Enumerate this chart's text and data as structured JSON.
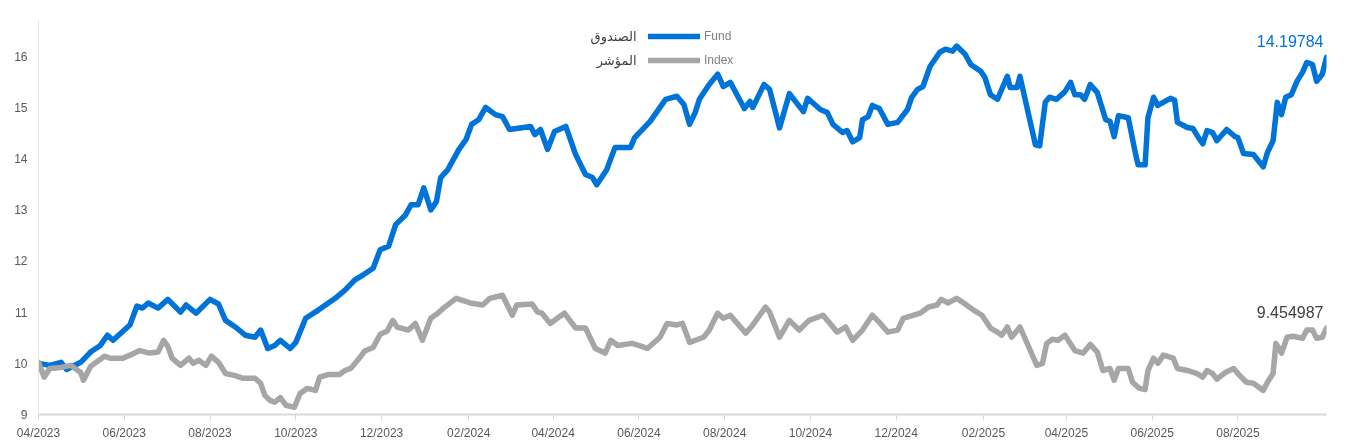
{
  "chart_data": {
    "type": "line",
    "xlim": [
      "2023-04-01",
      "2025-10-03"
    ],
    "xticks": [
      {
        "value": "2023-04-01",
        "label": "04/2023"
      },
      {
        "value": "2023-06-01",
        "label": "06/2023"
      },
      {
        "value": "2023-08-01",
        "label": "08/2023"
      },
      {
        "value": "2023-10-01",
        "label": "10/2023"
      },
      {
        "value": "2023-12-01",
        "label": "12/2023"
      },
      {
        "value": "2024-02-01",
        "label": "02/2024"
      },
      {
        "value": "2024-04-01",
        "label": "04/2024"
      },
      {
        "value": "2024-06-01",
        "label": "06/2024"
      },
      {
        "value": "2024-08-01",
        "label": "08/2024"
      },
      {
        "value": "2024-10-01",
        "label": "10/2024"
      },
      {
        "value": "2024-12-01",
        "label": "12/2024"
      },
      {
        "value": "2025-02-01",
        "label": "02/2025"
      },
      {
        "value": "2025-04-01",
        "label": "04/2025"
      },
      {
        "value": "2025-06-01",
        "label": "06/2025"
      },
      {
        "value": "2025-08-01",
        "label": "08/2025"
      }
    ],
    "ylim": [
      9,
      16.7
    ],
    "yticks": [
      9,
      10,
      11,
      12,
      13,
      14,
      15,
      16
    ],
    "grid": false,
    "legend": "top",
    "marker": "none",
    "line_style": "solid",
    "annotations": [
      "14.19784",
      "9.454987",
      "الصندوق",
      "المؤشر"
    ],
    "series": [
      {
        "name": "Fund",
        "color": "#0073d9",
        "x": [
          "2023-04-01",
          "2023-04-09",
          "2023-04-17",
          "2023-04-21",
          "2023-05-01",
          "2023-05-08",
          "2023-05-15",
          "2023-05-20",
          "2023-05-24",
          "2023-06-05",
          "2023-06-10",
          "2023-06-14",
          "2023-06-18",
          "2023-06-25",
          "2023-07-02",
          "2023-07-11",
          "2023-07-15",
          "2023-07-22",
          "2023-08-01",
          "2023-08-07",
          "2023-08-12",
          "2023-08-19",
          "2023-08-26",
          "2023-09-02",
          "2023-09-06",
          "2023-09-11",
          "2023-09-16",
          "2023-09-20",
          "2023-09-27",
          "2023-10-01",
          "2023-10-08",
          "2023-10-17",
          "2023-10-29",
          "2023-11-05",
          "2023-11-12",
          "2023-11-18",
          "2023-11-25",
          "2023-11-30",
          "2023-12-06",
          "2023-12-11",
          "2023-12-18",
          "2023-12-22",
          "2023-12-27",
          "2023-12-31",
          "2024-01-05",
          "2024-01-09",
          "2024-01-12",
          "2024-01-17",
          "2024-01-25",
          "2024-01-30",
          "2024-02-03",
          "2024-02-08",
          "2024-02-13",
          "2024-02-20",
          "2024-02-25",
          "2024-03-01",
          "2024-03-16",
          "2024-03-19",
          "2024-03-23",
          "2024-03-28",
          "2024-04-02",
          "2024-04-10",
          "2024-04-17",
          "2024-04-24",
          "2024-04-29",
          "2024-05-02",
          "2024-05-09",
          "2024-05-15",
          "2024-05-26",
          "2024-05-29",
          "2024-06-09",
          "2024-06-20",
          "2024-06-28",
          "2024-07-03",
          "2024-07-07",
          "2024-07-11",
          "2024-07-14",
          "2024-07-21",
          "2024-07-27",
          "2024-07-31",
          "2024-08-05",
          "2024-08-15",
          "2024-08-19",
          "2024-08-21",
          "2024-08-29",
          "2024-09-02",
          "2024-09-09",
          "2024-09-16",
          "2024-09-26",
          "2024-09-29",
          "2024-10-08",
          "2024-10-13",
          "2024-10-17",
          "2024-10-24",
          "2024-10-27",
          "2024-10-31",
          "2024-11-05",
          "2024-11-07",
          "2024-11-11",
          "2024-11-14",
          "2024-11-19",
          "2024-11-25",
          "2024-12-02",
          "2024-12-09",
          "2024-12-12",
          "2024-12-16",
          "2024-12-20",
          "2024-12-25",
          "2025-01-01",
          "2025-01-05",
          "2025-01-10",
          "2025-01-13",
          "2025-01-19",
          "2025-01-23",
          "2025-01-30",
          "2025-02-02",
          "2025-02-06",
          "2025-02-11",
          "2025-02-18",
          "2025-02-20",
          "2025-02-25",
          "2025-02-27",
          "2025-03-10",
          "2025-03-13",
          "2025-03-17",
          "2025-03-20",
          "2025-03-25",
          "2025-03-31",
          "2025-04-04",
          "2025-04-07",
          "2025-04-11",
          "2025-04-14",
          "2025-04-18",
          "2025-04-23",
          "2025-04-29",
          "2025-05-02",
          "2025-05-05",
          "2025-05-08",
          "2025-05-15",
          "2025-05-20",
          "2025-05-22",
          "2025-05-27",
          "2025-05-29",
          "2025-06-02",
          "2025-06-05",
          "2025-06-14",
          "2025-06-17",
          "2025-06-19",
          "2025-06-26",
          "2025-06-30",
          "2025-07-04",
          "2025-07-07",
          "2025-07-10",
          "2025-07-14",
          "2025-07-17",
          "2025-07-24",
          "2025-07-30",
          "2025-08-01",
          "2025-08-05",
          "2025-08-12",
          "2025-08-19",
          "2025-08-22",
          "2025-08-26",
          "2025-08-29",
          "2025-09-01",
          "2025-09-04",
          "2025-09-08",
          "2025-09-12",
          "2025-09-16",
          "2025-09-19",
          "2025-09-23",
          "2025-09-26",
          "2025-09-30",
          "2025-10-03"
        ],
        "values": [
          10.0,
          9.96,
          10.02,
          9.88,
          10.02,
          10.22,
          10.35,
          10.55,
          10.45,
          10.75,
          11.12,
          11.08,
          11.18,
          11.08,
          11.25,
          11.0,
          11.14,
          10.98,
          11.25,
          11.16,
          10.84,
          10.71,
          10.55,
          10.51,
          10.65,
          10.29,
          10.35,
          10.45,
          10.29,
          10.41,
          10.88,
          11.04,
          11.27,
          11.43,
          11.63,
          11.73,
          11.86,
          12.22,
          12.29,
          12.71,
          12.9,
          13.1,
          13.1,
          13.43,
          13.0,
          13.16,
          13.63,
          13.78,
          14.18,
          14.37,
          14.67,
          14.76,
          15.0,
          14.86,
          14.82,
          14.57,
          14.63,
          14.47,
          14.57,
          14.18,
          14.53,
          14.63,
          14.08,
          13.69,
          13.63,
          13.49,
          13.78,
          14.22,
          14.22,
          14.41,
          14.73,
          15.16,
          15.22,
          15.06,
          14.67,
          14.9,
          15.16,
          15.45,
          15.65,
          15.41,
          15.49,
          14.98,
          15.12,
          15.0,
          15.45,
          15.35,
          14.6,
          15.27,
          14.92,
          15.18,
          14.96,
          14.9,
          14.67,
          14.51,
          14.55,
          14.33,
          14.41,
          14.76,
          14.82,
          15.04,
          14.98,
          14.67,
          14.71,
          14.96,
          15.2,
          15.35,
          15.41,
          15.8,
          16.08,
          16.14,
          16.1,
          16.2,
          16.04,
          15.84,
          15.71,
          15.59,
          15.25,
          15.16,
          15.61,
          15.39,
          15.39,
          15.61,
          14.27,
          14.25,
          15.1,
          15.2,
          15.16,
          15.31,
          15.49,
          15.25,
          15.25,
          15.16,
          15.45,
          15.29,
          14.76,
          14.73,
          14.43,
          14.84,
          14.8,
          14.12,
          13.88,
          13.88,
          14.8,
          15.2,
          15.04,
          15.18,
          15.14,
          14.71,
          14.61,
          14.59,
          14.41,
          14.29,
          14.55,
          14.51,
          14.35,
          14.57,
          14.43,
          14.41,
          14.1,
          14.08,
          13.84,
          14.12,
          14.35,
          15.1,
          14.86,
          15.2,
          15.25,
          15.51,
          15.69,
          15.88,
          15.84,
          15.51,
          15.65,
          15.98
        ]
      },
      {
        "name": "Index",
        "color": "#a6a6a6",
        "x": [
          "2023-04-01",
          "2023-04-05",
          "2023-04-09",
          "2023-04-17",
          "2023-04-24",
          "2023-05-01",
          "2023-05-03",
          "2023-05-08",
          "2023-05-14",
          "2023-05-18",
          "2023-05-22",
          "2023-05-31",
          "2023-06-05",
          "2023-06-12",
          "2023-06-19",
          "2023-06-25",
          "2023-06-29",
          "2023-07-02",
          "2023-07-05",
          "2023-07-11",
          "2023-07-17",
          "2023-07-20",
          "2023-07-24",
          "2023-07-29",
          "2023-08-02",
          "2023-08-07",
          "2023-08-12",
          "2023-08-19",
          "2023-08-24",
          "2023-09-02",
          "2023-09-06",
          "2023-09-09",
          "2023-09-13",
          "2023-09-16",
          "2023-09-20",
          "2023-09-24",
          "2023-09-30",
          "2023-10-04",
          "2023-10-09",
          "2023-10-15",
          "2023-10-18",
          "2023-10-24",
          "2023-11-01",
          "2023-11-05",
          "2023-11-09",
          "2023-11-14",
          "2023-11-19",
          "2023-11-25",
          "2023-11-30",
          "2023-12-05",
          "2023-12-09",
          "2023-12-12",
          "2023-12-20",
          "2023-12-25",
          "2023-12-30",
          "2024-01-05",
          "2024-01-10",
          "2024-01-14",
          "2024-01-23",
          "2024-02-02",
          "2024-02-11",
          "2024-02-16",
          "2024-02-25",
          "2024-03-03",
          "2024-03-06",
          "2024-03-17",
          "2024-03-21",
          "2024-03-24",
          "2024-03-30",
          "2024-04-04",
          "2024-04-09",
          "2024-04-17",
          "2024-04-24",
          "2024-05-01",
          "2024-05-08",
          "2024-05-12",
          "2024-05-17",
          "2024-05-27",
          "2024-06-03",
          "2024-06-07",
          "2024-06-16",
          "2024-06-21",
          "2024-06-28",
          "2024-07-02",
          "2024-07-07",
          "2024-07-17",
          "2024-07-21",
          "2024-07-27",
          "2024-07-31",
          "2024-08-05",
          "2024-08-16",
          "2024-08-21",
          "2024-08-30",
          "2024-09-02",
          "2024-09-09",
          "2024-09-16",
          "2024-09-23",
          "2024-09-30",
          "2024-10-10",
          "2024-10-20",
          "2024-10-26",
          "2024-10-31",
          "2024-11-07",
          "2024-11-14",
          "2024-11-19",
          "2024-11-25",
          "2024-12-02",
          "2024-12-06",
          "2024-12-18",
          "2024-12-24",
          "2024-12-30",
          "2025-01-02",
          "2025-01-07",
          "2025-01-13",
          "2025-01-18",
          "2025-01-25",
          "2025-01-31",
          "2025-02-06",
          "2025-02-11",
          "2025-02-14",
          "2025-02-18",
          "2025-02-21",
          "2025-02-27",
          "2025-03-11",
          "2025-03-15",
          "2025-03-18",
          "2025-03-22",
          "2025-03-26",
          "2025-03-31",
          "2025-04-07",
          "2025-04-13",
          "2025-04-18",
          "2025-04-23",
          "2025-04-27",
          "2025-05-02",
          "2025-05-05",
          "2025-05-08",
          "2025-05-15",
          "2025-05-18",
          "2025-05-23",
          "2025-05-27",
          "2025-05-29",
          "2025-06-02",
          "2025-06-05",
          "2025-06-09",
          "2025-06-16",
          "2025-06-19",
          "2025-06-26",
          "2025-07-03",
          "2025-07-07",
          "2025-07-10",
          "2025-07-14",
          "2025-07-17",
          "2025-07-23",
          "2025-07-29",
          "2025-08-01",
          "2025-08-07",
          "2025-08-12",
          "2025-08-19",
          "2025-08-22",
          "2025-08-26",
          "2025-08-28",
          "2025-09-01",
          "2025-09-05",
          "2025-09-09",
          "2025-09-16",
          "2025-09-19",
          "2025-09-23",
          "2025-09-26",
          "2025-09-30",
          "2025-10-03"
        ],
        "values": [
          10.02,
          9.73,
          9.9,
          9.92,
          9.96,
          9.82,
          9.67,
          9.94,
          10.06,
          10.14,
          10.1,
          10.1,
          10.16,
          10.25,
          10.2,
          10.22,
          10.45,
          10.33,
          10.1,
          9.96,
          10.1,
          10.0,
          10.06,
          9.96,
          10.14,
          10.02,
          9.8,
          9.76,
          9.71,
          9.71,
          9.61,
          9.37,
          9.27,
          9.24,
          9.33,
          9.18,
          9.14,
          9.41,
          9.51,
          9.47,
          9.73,
          9.78,
          9.78,
          9.86,
          9.9,
          10.06,
          10.24,
          10.31,
          10.57,
          10.63,
          10.84,
          10.71,
          10.65,
          10.78,
          10.45,
          10.88,
          10.98,
          11.08,
          11.27,
          11.18,
          11.14,
          11.27,
          11.33,
          10.94,
          11.14,
          11.16,
          11.0,
          10.98,
          10.78,
          10.88,
          10.98,
          10.69,
          10.69,
          10.29,
          10.2,
          10.45,
          10.35,
          10.39,
          10.33,
          10.29,
          10.51,
          10.78,
          10.75,
          10.78,
          10.41,
          10.51,
          10.65,
          10.98,
          10.88,
          10.94,
          10.59,
          10.75,
          11.1,
          11.0,
          10.51,
          10.84,
          10.65,
          10.84,
          10.94,
          10.61,
          10.71,
          10.45,
          10.65,
          10.94,
          10.8,
          10.61,
          10.65,
          10.88,
          10.98,
          11.1,
          11.14,
          11.25,
          11.18,
          11.27,
          11.18,
          11.04,
          10.94,
          10.69,
          10.61,
          10.55,
          10.71,
          10.51,
          10.71,
          9.96,
          10.0,
          10.39,
          10.47,
          10.45,
          10.55,
          10.25,
          10.2,
          10.37,
          10.22,
          9.86,
          9.9,
          9.67,
          9.9,
          9.9,
          9.63,
          9.51,
          9.49,
          9.86,
          10.1,
          10.0,
          10.16,
          10.1,
          9.9,
          9.86,
          9.8,
          9.73,
          9.86,
          9.8,
          9.69,
          9.82,
          9.9,
          9.8,
          9.63,
          9.61,
          9.47,
          9.63,
          9.8,
          10.39,
          10.2,
          10.51,
          10.53,
          10.49,
          10.65,
          10.65,
          10.49,
          10.51,
          10.69
        ]
      }
    ]
  }
}
